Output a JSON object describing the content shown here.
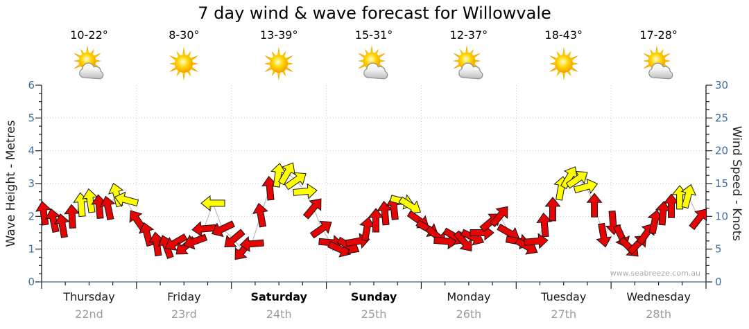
{
  "title": "7 day wind & wave forecast for Willowvale",
  "watermark": "www.seabreeze.com.au",
  "left_axis": {
    "label": "Wave Height - Metres",
    "ticks": [
      0,
      1,
      2,
      3,
      4,
      5,
      6
    ],
    "unit": "metres"
  },
  "right_axis": {
    "label": "Wind Speed - Knots",
    "ticks": [
      0,
      5,
      10,
      15,
      20,
      25,
      30
    ],
    "unit": "knots"
  },
  "days": [
    {
      "name": "Thursday",
      "date": "22nd",
      "temp": "10-22°",
      "icon": "sun-cloud-icon",
      "bold": false
    },
    {
      "name": "Friday",
      "date": "23rd",
      "temp": "8-30°",
      "icon": "sun-icon",
      "bold": false
    },
    {
      "name": "Saturday",
      "date": "24th",
      "temp": "13-39°",
      "icon": "sun-icon",
      "bold": true
    },
    {
      "name": "Sunday",
      "date": "25th",
      "temp": "15-31°",
      "icon": "sun-cloud-icon",
      "bold": true
    },
    {
      "name": "Monday",
      "date": "26th",
      "temp": "12-37°",
      "icon": "sun-cloud-icon",
      "bold": false
    },
    {
      "name": "Tuesday",
      "date": "27th",
      "temp": "18-43°",
      "icon": "sun-icon",
      "bold": false
    },
    {
      "name": "Wednesday",
      "date": "28th",
      "temp": "17-28°",
      "icon": "sun-cloud-icon",
      "bold": false
    }
  ],
  "colors": {
    "arrow_red": "#e60505",
    "arrow_yellow": "#ffff00",
    "arrow_outline": "#141414",
    "grid": "#c6c6c6",
    "axis_line": "#1a1a1a",
    "x_axis_line": "#35658e",
    "tick_label": "#3a6da0",
    "trend_line": "#b0b0b0",
    "date_label": "#9b9b9b"
  },
  "chart_data": {
    "type": "wind-arrows",
    "title": "7 day wind & wave forecast for Willowvale",
    "x_categories": [
      "Thursday 22nd",
      "Friday 23rd",
      "Saturday 24th",
      "Sunday 25th",
      "Monday 26th",
      "Tuesday 27th",
      "Wednesday 28th"
    ],
    "y_left_label": "Wave Height - Metres",
    "y_left_range_metres": [
      0,
      6
    ],
    "y_right_label": "Wind Speed - Knots",
    "y_right_range_knots": [
      0,
      30
    ],
    "gridlines": {
      "horizontal_metres": [
        1,
        2,
        3,
        4,
        5
      ],
      "vertical_day_boundaries": [
        1,
        2,
        3,
        4,
        5,
        6
      ],
      "style": "dotted"
    },
    "legend": "arrow vertical position = wind speed in knots; arrow rotation = wind direction; color red or yellow",
    "arrow_format": [
      "time_days_from_start",
      "wind_speed_knots",
      "direction_deg_clockwise_from_up",
      "color r=red y=yellow"
    ],
    "arrows": [
      [
        0.022,
        10.5,
        -8,
        "r"
      ],
      [
        0.124,
        9.4,
        -12,
        "r"
      ],
      [
        0.219,
        8.6,
        -10,
        "r"
      ],
      [
        0.321,
        10.0,
        -3,
        "r"
      ],
      [
        0.417,
        11.8,
        -5,
        "y"
      ],
      [
        0.512,
        12.4,
        -8,
        "y"
      ],
      [
        0.607,
        11.5,
        -5,
        "r"
      ],
      [
        0.701,
        11.3,
        -12,
        "r"
      ],
      [
        0.789,
        13.3,
        -15,
        "y"
      ],
      [
        0.891,
        12.5,
        -75,
        "y"
      ],
      [
        1.008,
        9.4,
        -35,
        "r"
      ],
      [
        1.111,
        7.3,
        -15,
        "r"
      ],
      [
        1.213,
        5.8,
        -8,
        "r"
      ],
      [
        1.315,
        5.4,
        -20,
        "r"
      ],
      [
        1.41,
        6.0,
        -120,
        "r"
      ],
      [
        1.513,
        5.4,
        -130,
        "r"
      ],
      [
        1.615,
        6.2,
        -110,
        "r"
      ],
      [
        1.71,
        8.1,
        -95,
        "r"
      ],
      [
        1.805,
        12.0,
        -90,
        "y"
      ],
      [
        1.907,
        8.1,
        -115,
        "r"
      ],
      [
        2.024,
        6.5,
        -130,
        "r"
      ],
      [
        2.119,
        4.8,
        -140,
        "r"
      ],
      [
        2.214,
        5.8,
        -95,
        "r"
      ],
      [
        2.309,
        10.2,
        -10,
        "r"
      ],
      [
        2.404,
        14.3,
        -5,
        "r"
      ],
      [
        2.492,
        16.3,
        8,
        "y"
      ],
      [
        2.587,
        16.6,
        30,
        "y"
      ],
      [
        2.682,
        15.5,
        55,
        "y"
      ],
      [
        2.777,
        13.8,
        85,
        "y"
      ],
      [
        2.864,
        11.3,
        40,
        "r"
      ],
      [
        2.952,
        8.1,
        55,
        "r"
      ],
      [
        3.047,
        6.0,
        95,
        "r"
      ],
      [
        3.142,
        5.0,
        115,
        "r"
      ],
      [
        3.237,
        5.5,
        120,
        "r"
      ],
      [
        3.332,
        6.2,
        80,
        "r"
      ],
      [
        3.427,
        8.1,
        10,
        "r"
      ],
      [
        3.522,
        9.4,
        0,
        "r"
      ],
      [
        3.617,
        10.5,
        -5,
        "r"
      ],
      [
        3.712,
        11.3,
        -6,
        "r"
      ],
      [
        3.8,
        12.3,
        105,
        "y"
      ],
      [
        3.887,
        11.6,
        122,
        "y"
      ],
      [
        3.975,
        9.4,
        125,
        "r"
      ],
      [
        4.07,
        8.1,
        120,
        "r"
      ],
      [
        4.165,
        7.0,
        130,
        "r"
      ],
      [
        4.26,
        6.2,
        95,
        "r"
      ],
      [
        4.355,
        6.9,
        120,
        "r"
      ],
      [
        4.45,
        6.1,
        140,
        "r"
      ],
      [
        4.545,
        6.8,
        115,
        "r"
      ],
      [
        4.64,
        7.5,
        90,
        "r"
      ],
      [
        4.735,
        9.2,
        50,
        "r"
      ],
      [
        4.83,
        10.1,
        40,
        "r"
      ],
      [
        4.925,
        7.5,
        120,
        "r"
      ],
      [
        5.02,
        6.2,
        100,
        "r"
      ],
      [
        5.115,
        5.4,
        120,
        "r"
      ],
      [
        5.21,
        6.2,
        85,
        "r"
      ],
      [
        5.298,
        8.7,
        -5,
        "r"
      ],
      [
        5.385,
        11.1,
        0,
        "r"
      ],
      [
        5.473,
        14.3,
        10,
        "y"
      ],
      [
        5.561,
        16.0,
        30,
        "y"
      ],
      [
        5.648,
        15.7,
        55,
        "y"
      ],
      [
        5.736,
        14.5,
        75,
        "y"
      ],
      [
        5.824,
        11.7,
        0,
        "r"
      ],
      [
        5.919,
        7.1,
        170,
        "r"
      ],
      [
        6.021,
        9.0,
        175,
        "r"
      ],
      [
        6.109,
        6.9,
        155,
        "r"
      ],
      [
        6.196,
        5.2,
        135,
        "r"
      ],
      [
        6.284,
        5.8,
        45,
        "r"
      ],
      [
        6.372,
        7.4,
        35,
        "r"
      ],
      [
        6.46,
        9.2,
        12,
        "r"
      ],
      [
        6.547,
        10.5,
        5,
        "r"
      ],
      [
        6.635,
        11.6,
        0,
        "r"
      ],
      [
        6.723,
        12.9,
        0,
        "y"
      ],
      [
        6.81,
        13.1,
        15,
        "y"
      ],
      [
        6.927,
        9.7,
        38,
        "r"
      ]
    ]
  }
}
